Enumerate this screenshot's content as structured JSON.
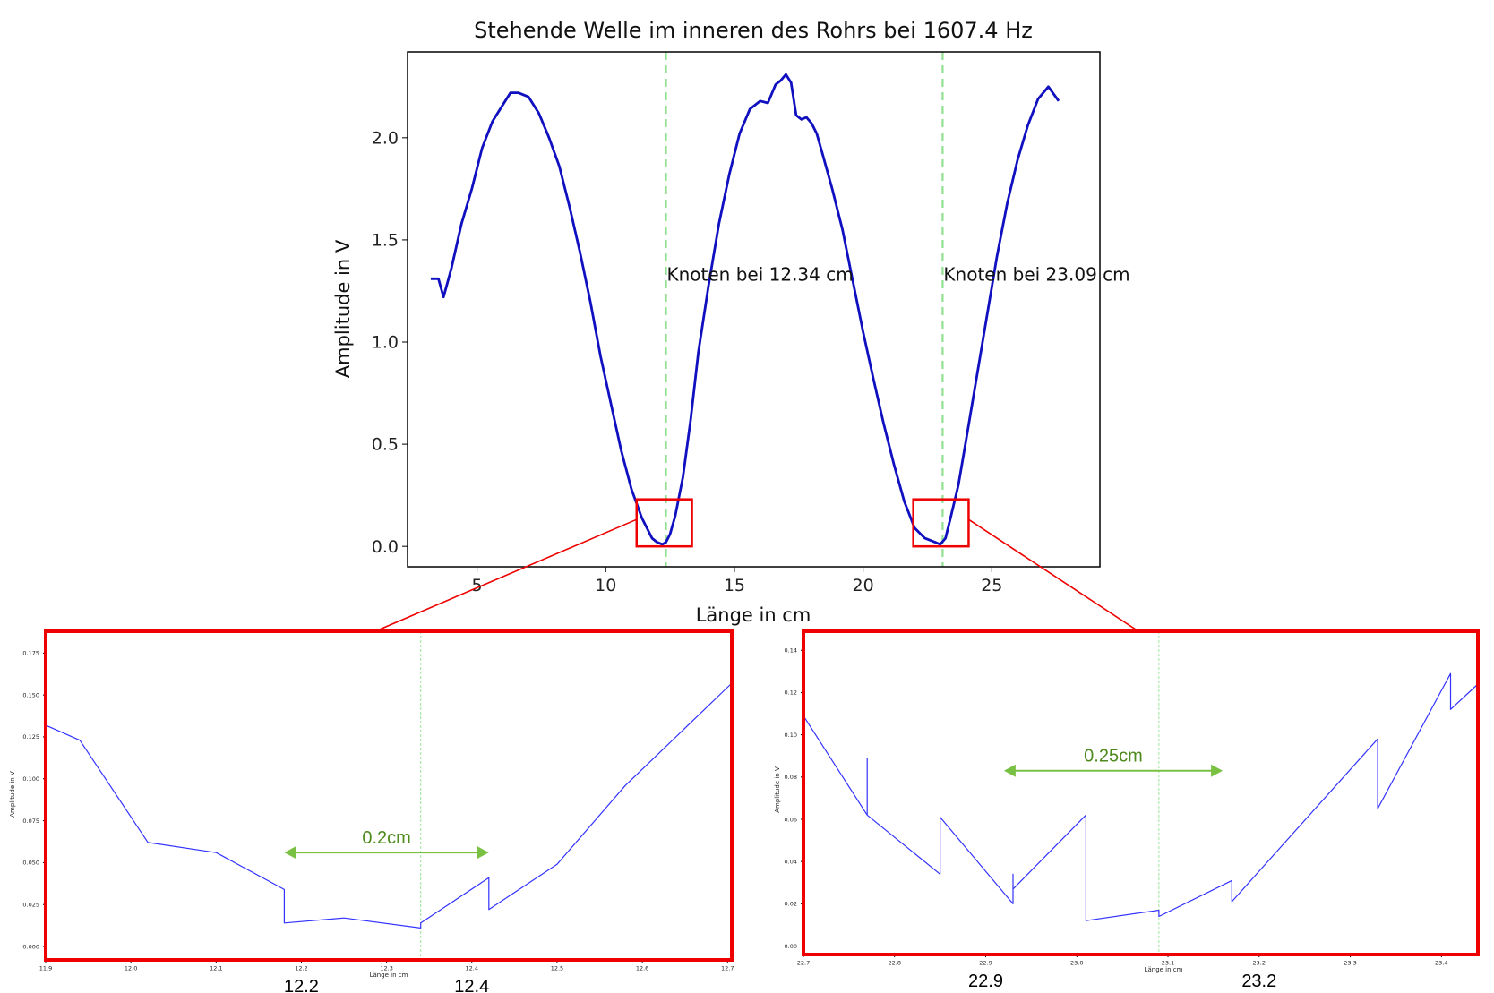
{
  "chart_data": [
    {
      "id": "main",
      "type": "line",
      "title": "Stehende Welle im inneren des Rohrs bei 1607.4 Hz",
      "xlabel": "Länge in cm",
      "ylabel": "Amplitude in V",
      "xlim": [
        2.3,
        29.2
      ],
      "ylim": [
        -0.1,
        2.42
      ],
      "xticks": [
        5,
        10,
        15,
        20,
        25
      ],
      "xtick_labels": [
        "5",
        "10",
        "15",
        "20",
        "25"
      ],
      "yticks": [
        0.0,
        0.5,
        1.0,
        1.5,
        2.0
      ],
      "ytick_labels": [
        "0.0",
        "0.5",
        "1.0",
        "1.5",
        "2.0"
      ],
      "grid": false,
      "line_color": "#1010c0",
      "vline_color": "#90e090",
      "vlines": [
        {
          "x": 12.34,
          "label": "Knoten bei 12.34 cm",
          "label_y": 1.33
        },
        {
          "x": 23.09,
          "label": "Knoten bei 23.09 cm",
          "label_y": 1.33
        }
      ],
      "zoom_boxes": [
        {
          "x0": 11.2,
          "x1": 13.35,
          "y0": 0.0,
          "y1": 0.23,
          "color": "#ee0000"
        },
        {
          "x0": 21.95,
          "x1": 24.1,
          "y0": 0.0,
          "y1": 0.23,
          "color": "#ee0000"
        }
      ],
      "x": [
        3.2,
        3.5,
        3.7,
        4.0,
        4.4,
        4.8,
        5.2,
        5.6,
        6.0,
        6.3,
        6.6,
        7.0,
        7.4,
        7.8,
        8.2,
        8.6,
        9.0,
        9.4,
        9.8,
        10.2,
        10.6,
        11.0,
        11.4,
        11.8,
        12.0,
        12.2,
        12.34,
        12.5,
        12.7,
        13.0,
        13.3,
        13.6,
        14.0,
        14.4,
        14.8,
        15.2,
        15.6,
        16.0,
        16.3,
        16.6,
        16.8,
        17.0,
        17.2,
        17.4,
        17.6,
        17.8,
        18.0,
        18.2,
        18.4,
        18.8,
        19.2,
        19.6,
        20.0,
        20.4,
        20.8,
        21.2,
        21.6,
        22.0,
        22.4,
        22.8,
        23.0,
        23.2,
        23.4,
        23.7,
        24.0,
        24.4,
        24.8,
        25.2,
        25.6,
        26.0,
        26.4,
        26.8,
        27.2,
        27.6
      ],
      "y": [
        1.31,
        1.31,
        1.22,
        1.36,
        1.58,
        1.75,
        1.95,
        2.08,
        2.16,
        2.22,
        2.22,
        2.2,
        2.12,
        2.0,
        1.86,
        1.66,
        1.44,
        1.2,
        0.93,
        0.7,
        0.47,
        0.28,
        0.14,
        0.04,
        0.02,
        0.01,
        0.02,
        0.06,
        0.15,
        0.34,
        0.62,
        0.95,
        1.28,
        1.58,
        1.82,
        2.02,
        2.14,
        2.18,
        2.17,
        2.26,
        2.28,
        2.31,
        2.27,
        2.11,
        2.09,
        2.1,
        2.07,
        2.02,
        1.93,
        1.75,
        1.55,
        1.3,
        1.05,
        0.82,
        0.6,
        0.4,
        0.22,
        0.09,
        0.04,
        0.02,
        0.01,
        0.04,
        0.14,
        0.3,
        0.52,
        0.82,
        1.12,
        1.42,
        1.68,
        1.89,
        2.06,
        2.19,
        2.25,
        2.18
      ]
    },
    {
      "id": "zoom-left",
      "type": "line",
      "xlabel": "Länge in cm",
      "ylabel": "Amplitude in V",
      "xlim": [
        11.9,
        12.705
      ],
      "ylim": [
        -0.008,
        0.188
      ],
      "xticks": [
        11.9,
        12.0,
        12.1,
        12.2,
        12.3,
        12.4,
        12.5,
        12.6,
        12.7
      ],
      "xtick_labels": [
        "11.9",
        "12.0",
        "12.1",
        "12.2",
        "12.3",
        "12.4",
        "12.5",
        "12.6",
        "12.7"
      ],
      "yticks": [
        0.0,
        0.025,
        0.05,
        0.075,
        0.1,
        0.125,
        0.15,
        0.175
      ],
      "ytick_labels": [
        "0.000",
        "0.025",
        "0.050",
        "0.075",
        "0.100",
        "0.125",
        "0.150",
        "0.175"
      ],
      "border_color": "#ee0000",
      "vline_x": 12.34,
      "x": [
        11.9,
        11.94,
        12.02,
        12.1,
        12.18,
        12.18,
        12.25,
        12.34,
        12.34,
        12.42,
        12.42,
        12.5,
        12.58,
        12.705
      ],
      "y": [
        0.132,
        0.123,
        0.062,
        0.056,
        0.034,
        0.014,
        0.017,
        0.011,
        0.014,
        0.041,
        0.022,
        0.049,
        0.096,
        0.157
      ],
      "arrow": {
        "x0": 12.18,
        "x1": 12.42,
        "y": 0.056,
        "label": "0.2cm",
        "color": "#7ac143",
        "text_color": "#4e8a1e"
      },
      "callout_labels": [
        {
          "text": "12.2",
          "x": 12.2
        },
        {
          "text": "12.4",
          "x": 12.4
        }
      ]
    },
    {
      "id": "zoom-right",
      "type": "line",
      "xlabel": "Länge in cm",
      "ylabel": "Amplitude in V",
      "xlim": [
        22.7,
        23.44
      ],
      "ylim": [
        -0.004,
        0.149
      ],
      "xticks": [
        22.7,
        22.8,
        22.9,
        23.0,
        23.1,
        23.2,
        23.3,
        23.4
      ],
      "xtick_labels": [
        "22.7",
        "22.8",
        "22.9",
        "23.0",
        "23.1",
        "23.2",
        "23.3",
        "23.4"
      ],
      "yticks": [
        0.0,
        0.02,
        0.04,
        0.06,
        0.08,
        0.1,
        0.12,
        0.14
      ],
      "ytick_labels": [
        "0.00",
        "0.02",
        "0.04",
        "0.06",
        "0.08",
        "0.10",
        "0.12",
        "0.14"
      ],
      "border_color": "#ee0000",
      "vline_x": 23.09,
      "x": [
        22.7,
        22.77,
        22.77,
        22.77,
        22.85,
        22.85,
        22.93,
        22.93,
        22.93,
        23.01,
        23.01,
        23.09,
        23.09,
        23.17,
        23.17,
        23.33,
        23.33,
        23.41,
        23.41,
        23.44
      ],
      "y": [
        0.109,
        0.062,
        0.089,
        0.062,
        0.034,
        0.061,
        0.02,
        0.034,
        0.027,
        0.062,
        0.012,
        0.017,
        0.014,
        0.031,
        0.021,
        0.098,
        0.065,
        0.129,
        0.112,
        0.124
      ],
      "arrow": {
        "x0": 22.92,
        "x1": 23.16,
        "y": 0.083,
        "label": "0.25cm",
        "color": "#7ac143",
        "text_color": "#4e8a1e"
      },
      "callout_labels": [
        {
          "text": "22.9",
          "x": 22.9
        },
        {
          "text": "23.2",
          "x": 23.2
        }
      ]
    }
  ]
}
